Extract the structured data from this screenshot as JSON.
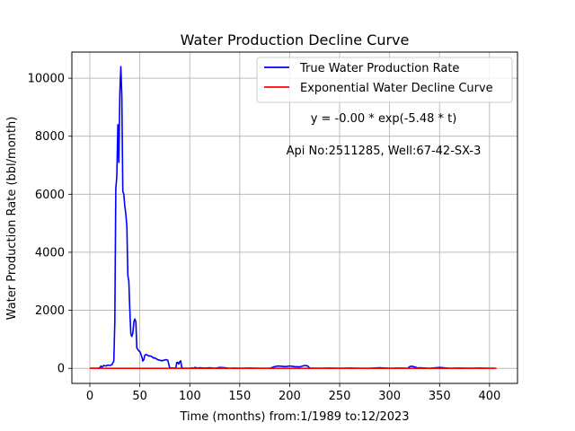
{
  "chart_data": {
    "type": "line",
    "title": "Water Production Decline Curve",
    "xlabel": "Time (months) from:1/1989 to:12/2023",
    "ylabel": "Water Production Rate (bbl/month)",
    "xlim": [
      -18,
      428
    ],
    "ylim": [
      -520,
      10900
    ],
    "xticks": [
      0,
      50,
      100,
      150,
      200,
      250,
      300,
      350,
      400
    ],
    "yticks": [
      0,
      2000,
      4000,
      6000,
      8000,
      10000
    ],
    "grid": true,
    "legend_position": "top-right",
    "annotations": [
      "y = -0.00 * exp(-5.48 * t)",
      "Api No:2511285, Well:67-42-SX-3"
    ],
    "series": [
      {
        "name": "True Water Production Rate",
        "color": "#0000ff",
        "x": [
          0,
          8,
          10,
          11,
          12,
          14,
          16,
          18,
          20,
          22,
          24,
          25,
          26,
          27,
          28,
          29,
          30,
          31,
          32,
          33,
          34,
          35,
          36,
          37,
          38,
          39,
          40,
          41,
          42,
          43,
          44,
          45,
          46,
          47,
          48,
          49,
          50,
          51,
          52,
          53,
          54,
          55,
          56,
          57,
          58,
          59,
          60,
          61,
          62,
          63,
          64,
          65,
          66,
          67,
          68,
          70,
          72,
          74,
          76,
          78,
          80,
          82,
          84,
          86,
          87,
          88,
          89,
          90,
          91,
          92,
          93,
          94,
          95,
          96,
          97,
          98,
          99,
          100,
          101,
          102,
          103,
          104,
          105,
          108,
          110,
          115,
          120,
          125,
          130,
          135,
          140,
          145,
          150,
          160,
          170,
          180,
          185,
          188,
          192,
          196,
          200,
          205,
          210,
          215,
          218,
          220,
          230,
          240,
          250,
          260,
          270,
          280,
          290,
          300,
          310,
          318,
          320,
          322,
          324,
          326,
          328,
          330,
          340,
          350,
          360,
          370,
          380,
          390,
          400,
          405
        ],
        "values": [
          0,
          0,
          20,
          80,
          40,
          100,
          80,
          110,
          100,
          120,
          250,
          1600,
          6200,
          6600,
          8400,
          7100,
          9500,
          10400,
          9400,
          6100,
          6000,
          5600,
          5300,
          4900,
          3200,
          3000,
          2000,
          1200,
          1100,
          1200,
          1600,
          1700,
          1600,
          700,
          650,
          600,
          580,
          500,
          400,
          250,
          300,
          450,
          480,
          460,
          450,
          420,
          430,
          420,
          400,
          380,
          350,
          360,
          340,
          320,
          300,
          280,
          260,
          280,
          300,
          280,
          0,
          20,
          0,
          20,
          200,
          200,
          150,
          230,
          260,
          20,
          10,
          0,
          0,
          0,
          0,
          0,
          0,
          0,
          0,
          20,
          10,
          0,
          30,
          10,
          20,
          10,
          20,
          0,
          30,
          20,
          0,
          10,
          0,
          10,
          0,
          0,
          60,
          80,
          70,
          60,
          80,
          60,
          50,
          100,
          80,
          10,
          0,
          10,
          0,
          10,
          0,
          0,
          20,
          0,
          10,
          0,
          60,
          70,
          60,
          40,
          10,
          20,
          0,
          30,
          0,
          10,
          0,
          10,
          0,
          0
        ]
      },
      {
        "name": "Exponential Water Decline Curve",
        "color": "#ff0000",
        "x": [
          0,
          407
        ],
        "values": [
          0,
          0
        ]
      }
    ]
  }
}
